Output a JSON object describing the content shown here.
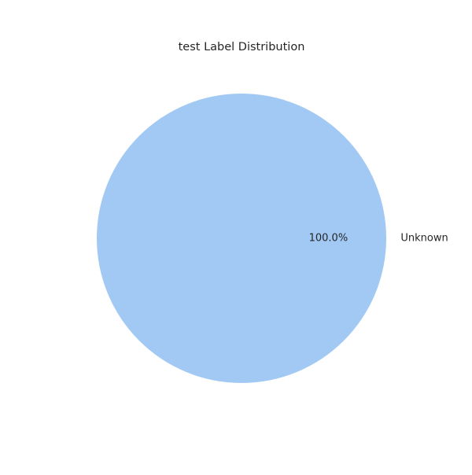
{
  "chart_data": {
    "type": "pie",
    "title": "test Label Distribution",
    "categories": [
      "Unknown"
    ],
    "values": [
      100.0
    ],
    "percent_labels": [
      "100.0%"
    ],
    "colors": [
      "#a1c9f4"
    ],
    "legend": "none"
  }
}
